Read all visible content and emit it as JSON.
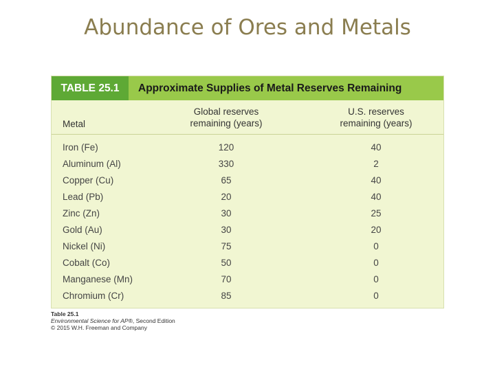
{
  "slide": {
    "title": "Abundance of Ores and Metals"
  },
  "table": {
    "number": "TABLE 25.1",
    "caption": "Approximate Supplies of Metal Reserves Remaining",
    "columns": {
      "metal": "Metal",
      "global": [
        "Global reserves",
        "remaining (years)"
      ],
      "us": [
        "U.S. reserves",
        "remaining (years)"
      ]
    },
    "rows": [
      {
        "metal": "Iron (Fe)",
        "global": "120",
        "us": "40"
      },
      {
        "metal": "Aluminum (Al)",
        "global": "330",
        "us": "2"
      },
      {
        "metal": "Copper (Cu)",
        "global": "65",
        "us": "40"
      },
      {
        "metal": "Lead (Pb)",
        "global": "20",
        "us": "40"
      },
      {
        "metal": "Zinc (Zn)",
        "global": "30",
        "us": "25"
      },
      {
        "metal": "Gold (Au)",
        "global": "30",
        "us": "20"
      },
      {
        "metal": "Nickel (Ni)",
        "global": "75",
        "us": "0"
      },
      {
        "metal": "Cobalt (Co)",
        "global": "50",
        "us": "0"
      },
      {
        "metal": "Manganese (Mn)",
        "global": "70",
        "us": "0"
      },
      {
        "metal": "Chromium (Cr)",
        "global": "85",
        "us": "0"
      }
    ]
  },
  "source": {
    "label": "Table 25.1",
    "book": "Environmental Science for AP®",
    "edition": ", Second Edition",
    "copyright": "© 2015 W.H. Freeman and Company"
  },
  "colors": {
    "title": "#8a7d4f",
    "header_number_bg": "#5ea935",
    "header_bg": "#99c94a",
    "table_bg": "#f1f6d2"
  }
}
